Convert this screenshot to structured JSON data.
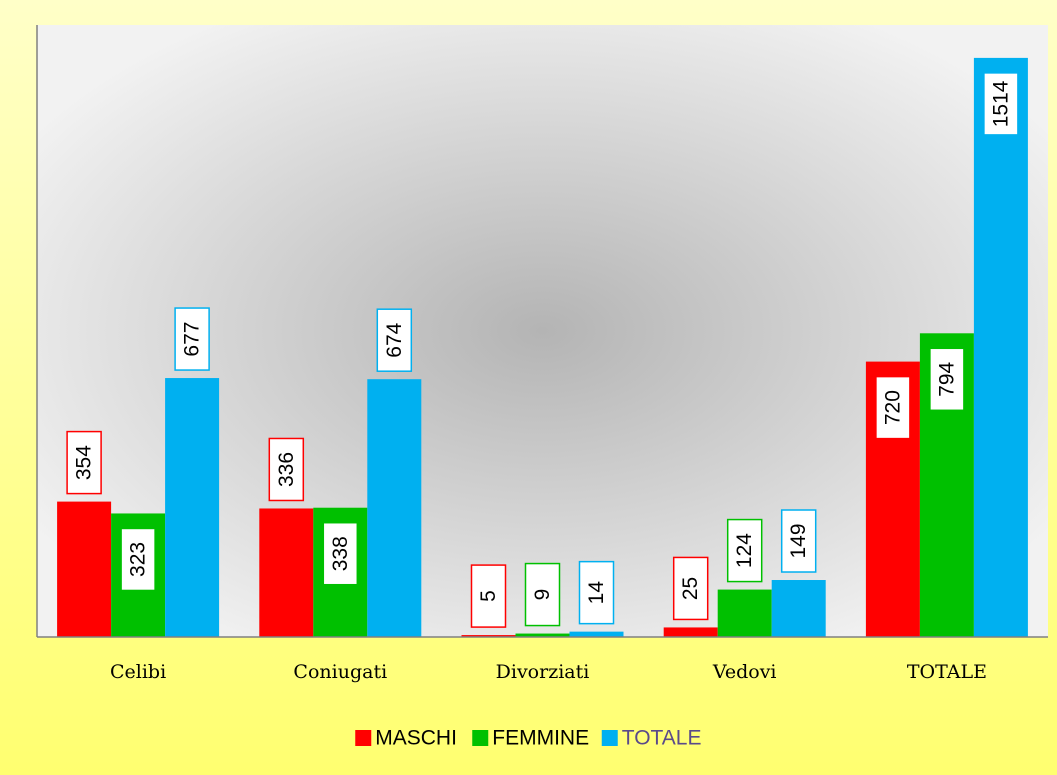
{
  "chart_data": {
    "type": "bar",
    "categories": [
      "Celibi",
      "Coniugati",
      "Divorziati",
      "Vedovi",
      "TOTALE"
    ],
    "series": [
      {
        "name": "MASCHI",
        "color": "#ff0000",
        "values": [
          354,
          336,
          5,
          25,
          720
        ]
      },
      {
        "name": "FEMMINE",
        "color": "#00c000",
        "values": [
          323,
          338,
          9,
          124,
          794
        ]
      },
      {
        "name": "TOTALE",
        "color": "#00b0f0",
        "values": [
          677,
          674,
          14,
          149,
          1514
        ]
      }
    ],
    "ylim": [
      0,
      1600
    ],
    "legend": "bottom"
  }
}
